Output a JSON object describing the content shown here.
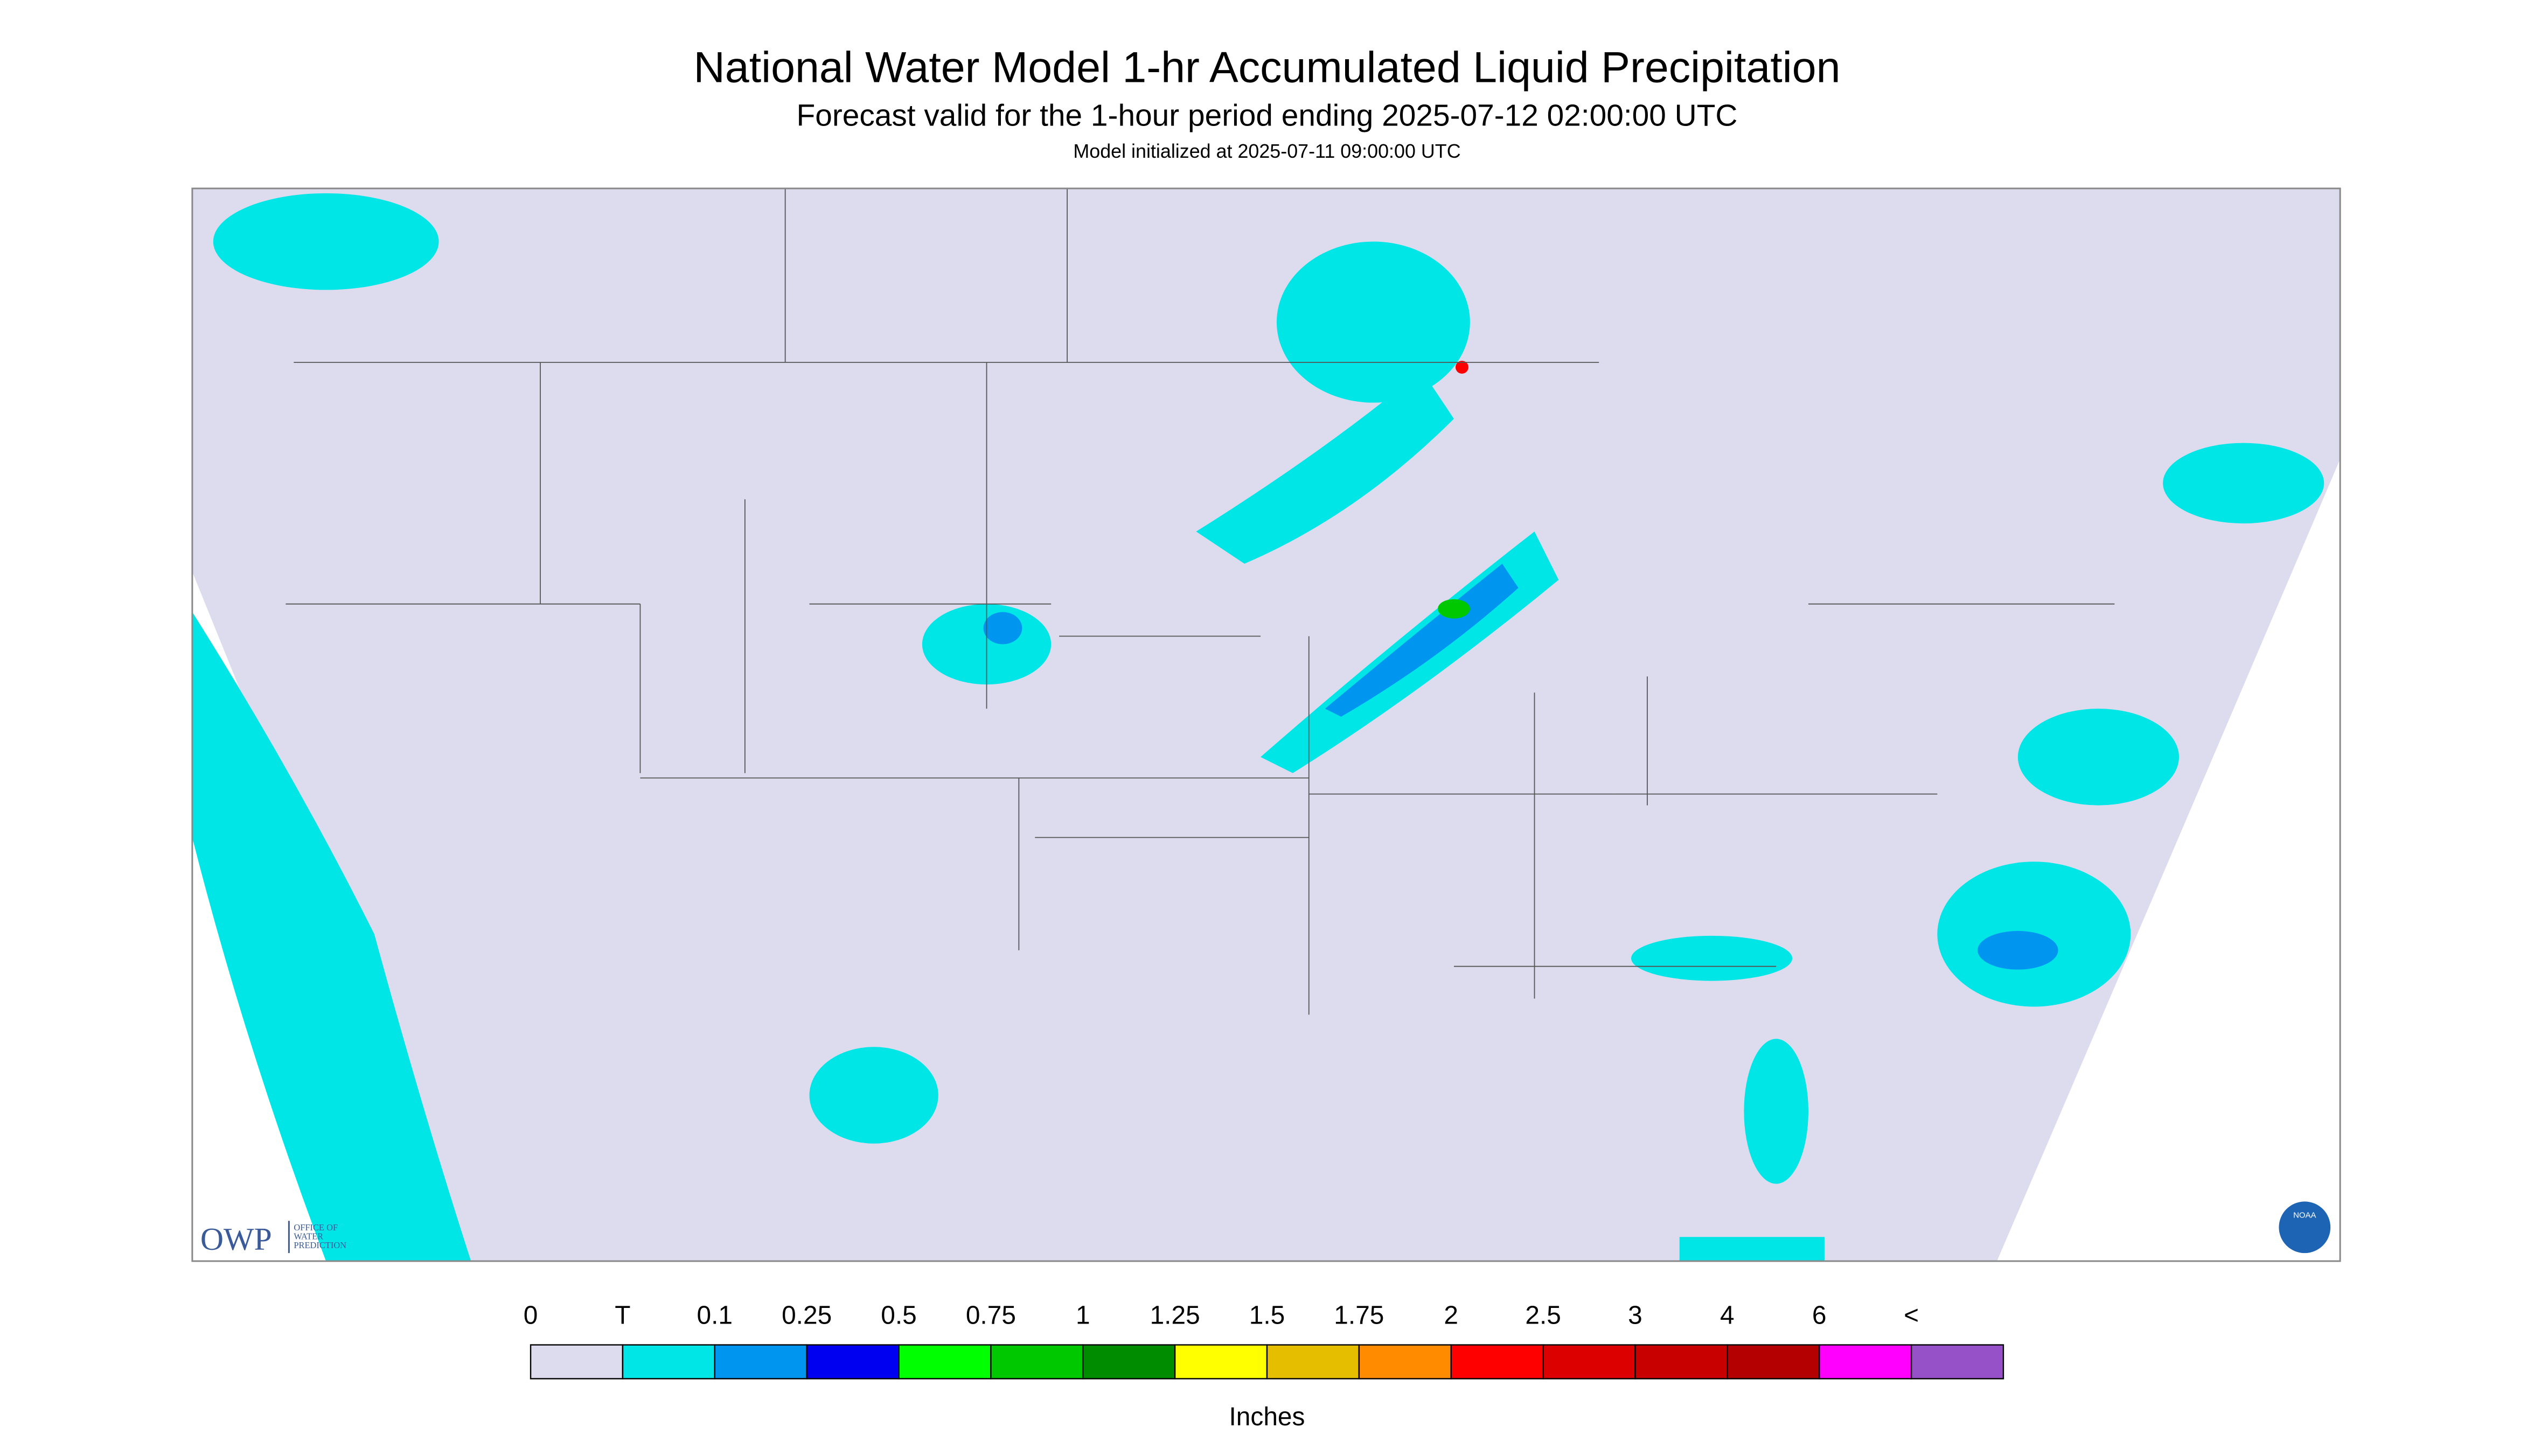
{
  "header": {
    "title": "National Water Model 1-hr Accumulated Liquid Precipitation",
    "subtitle": "Forecast valid for the 1-hour period ending 2025-07-12 02:00:00 UTC",
    "init": "Model initialized at 2025-07-11 09:00:00 UTC"
  },
  "legend": {
    "labels": [
      "0",
      "T",
      "0.1",
      "0.25",
      "0.5",
      "0.75",
      "1",
      "1.25",
      "1.5",
      "1.75",
      "2",
      "2.5",
      "3",
      "4",
      "6",
      "<"
    ],
    "colors": [
      "#dcdcee",
      "#00e6e6",
      "#0096f0",
      "#0000f0",
      "#00ff00",
      "#00c800",
      "#008c00",
      "#ffff00",
      "#e6be00",
      "#ff8c00",
      "#ff0000",
      "#dc0000",
      "#c80000",
      "#b40000",
      "#ff00ff",
      "#9650c8"
    ],
    "units": "Inches"
  },
  "logos": {
    "owp": "OWP",
    "owp_lines": [
      "OFFICE OF",
      "WATER",
      "PREDICTION"
    ],
    "noaa": "NOAA"
  }
}
